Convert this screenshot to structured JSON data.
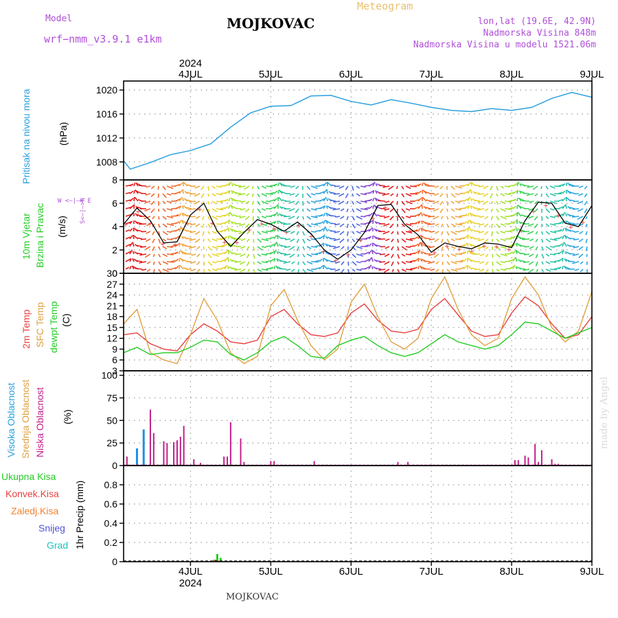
{
  "header": {
    "model_label": "Model",
    "model_name": "wrf−nmm_v3.9.1  e1km",
    "station": "MOJKOVAC",
    "meteogram": "Meteogram",
    "lonlat": "lon,lat (19.6E, 42.9N)",
    "elevation": "Nadmorska Visina 848m",
    "model_elevation": "Nadmorska Visina u modelu 1521.06m",
    "footer_station": "MOJKOVAC",
    "watermark": "made by Angel"
  },
  "colors": {
    "pressure": "#2aa0e0",
    "wind_speed": "#000000",
    "t2m": "#e84040",
    "sfc": "#e0a040",
    "dewpt": "#22cc22",
    "high_cloud": "#1e90e6",
    "mid_cloud": "#e0a040",
    "low_cloud": "#c0208a",
    "total_precip": "#22cc22",
    "conv_precip": "#e84040",
    "frozen_precip": "#f08030",
    "snow": "#5050e0",
    "graupel": "#20c0c0"
  },
  "time_axis": {
    "year_label": "2024",
    "days": [
      "4JUL",
      "5JUL",
      "6JUL",
      "7JUL",
      "8JUL",
      "9JUL"
    ],
    "start": "2024-07-03T16:00",
    "end": "2024-07-09T12:00"
  },
  "panels": {
    "pressure": {
      "ylabel": "Pritisak na nivou mora",
      "unit": "(hPa)"
    },
    "wind": {
      "ylabel_1": "10m Vjetar",
      "ylabel_2": "Brzina i Pravac",
      "unit": "(m/s)",
      "compass": "W <—|—> E",
      "compass_ns": "S<—|—>N"
    },
    "temp": {
      "ylabel_t2m": "2m Temp",
      "ylabel_sfc": "SFC Temp",
      "ylabel_dew": "dewpt Temp",
      "unit": "(C)"
    },
    "cloud": {
      "ylabel_high": "Visoka Oblacnost",
      "ylabel_mid": "Srednja Oblacnost",
      "ylabel_low": "Niska Oblacnost",
      "unit": "(%)"
    },
    "precip": {
      "ylabel": "1hr Precip (mm)",
      "legend": [
        "Ukupna Kisa",
        "Konvek.Kisa",
        "Zaledj.Kisa",
        "Snijeg",
        "Grad"
      ]
    }
  },
  "chart_data": [
    {
      "type": "line",
      "title": "Pritisak na nivou mora",
      "ylabel": "(hPa)",
      "ylim": [
        1005,
        1021.5
      ],
      "yticks": [
        1008,
        1012,
        1016,
        1020
      ],
      "series": [
        {
          "name": "Pritisak na nivou mora",
          "x": [
            "2024-07-03T16:00",
            "2024-07-03T18:00",
            "2024-07-04T00:00",
            "2024-07-04T06:00",
            "2024-07-04T12:00",
            "2024-07-04T18:00",
            "2024-07-05T00:00",
            "2024-07-05T06:00",
            "2024-07-05T12:00",
            "2024-07-05T18:00",
            "2024-07-06T00:00",
            "2024-07-06T06:00",
            "2024-07-06T12:00",
            "2024-07-06T18:00",
            "2024-07-07T00:00",
            "2024-07-07T06:00",
            "2024-07-07T12:00",
            "2024-07-07T18:00",
            "2024-07-08T00:00",
            "2024-07-08T06:00",
            "2024-07-08T12:00",
            "2024-07-08T18:00",
            "2024-07-09T00:00",
            "2024-07-09T06:00",
            "2024-07-09T12:00"
          ],
          "values": [
            1008.2,
            1006.8,
            1007.9,
            1009.2,
            1009.9,
            1011.0,
            1013.8,
            1016.2,
            1017.3,
            1017.4,
            1019.0,
            1019.1,
            1018.1,
            1017.5,
            1018.4,
            1017.8,
            1017.1,
            1016.6,
            1016.4,
            1016.9,
            1016.6,
            1017.1,
            1018.6,
            1019.6,
            1018.8
          ]
        }
      ]
    },
    {
      "type": "line",
      "title": "10m Vjetar Brzina i Pravac",
      "ylabel": "(m/s)",
      "ylim": [
        0,
        8
      ],
      "yticks": [
        0,
        2,
        4,
        6,
        8
      ],
      "series": [
        {
          "name": "Brzina",
          "x": [
            "2024-07-03T16:00",
            "2024-07-03T20:00",
            "2024-07-04T00:00",
            "2024-07-04T04:00",
            "2024-07-04T08:00",
            "2024-07-04T12:00",
            "2024-07-04T16:00",
            "2024-07-04T20:00",
            "2024-07-05T00:00",
            "2024-07-05T04:00",
            "2024-07-05T08:00",
            "2024-07-05T12:00",
            "2024-07-05T16:00",
            "2024-07-05T20:00",
            "2024-07-06T00:00",
            "2024-07-06T04:00",
            "2024-07-06T08:00",
            "2024-07-06T12:00",
            "2024-07-06T16:00",
            "2024-07-06T20:00",
            "2024-07-07T00:00",
            "2024-07-07T04:00",
            "2024-07-07T08:00",
            "2024-07-07T12:00",
            "2024-07-07T16:00",
            "2024-07-07T20:00",
            "2024-07-08T00:00",
            "2024-07-08T04:00",
            "2024-07-08T08:00",
            "2024-07-08T12:00",
            "2024-07-08T16:00",
            "2024-07-08T20:00",
            "2024-07-09T00:00",
            "2024-07-09T04:00",
            "2024-07-09T08:00",
            "2024-07-09T12:00"
          ],
          "values": [
            4.2,
            5.6,
            4.5,
            2.6,
            2.7,
            5.0,
            6.0,
            3.6,
            2.3,
            3.5,
            4.6,
            4.2,
            3.6,
            4.4,
            3.4,
            2.0,
            1.2,
            2.0,
            3.5,
            5.8,
            5.9,
            4.2,
            3.3,
            1.8,
            2.6,
            2.3,
            2.1,
            2.6,
            2.5,
            2.2,
            4.5,
            6.1,
            6.0,
            4.3,
            4.0,
            5.8
          ]
        }
      ]
    },
    {
      "type": "line",
      "title": "Temperatura",
      "ylabel": "(C)",
      "ylim": [
        3,
        30
      ],
      "yticks": [
        3,
        6,
        9,
        12,
        15,
        18,
        21,
        24,
        27,
        30
      ],
      "x": [
        "2024-07-03T16:00",
        "2024-07-03T20:00",
        "2024-07-04T00:00",
        "2024-07-04T04:00",
        "2024-07-04T08:00",
        "2024-07-04T12:00",
        "2024-07-04T16:00",
        "2024-07-04T20:00",
        "2024-07-05T00:00",
        "2024-07-05T04:00",
        "2024-07-05T08:00",
        "2024-07-05T12:00",
        "2024-07-05T16:00",
        "2024-07-05T20:00",
        "2024-07-06T00:00",
        "2024-07-06T04:00",
        "2024-07-06T08:00",
        "2024-07-06T12:00",
        "2024-07-06T16:00",
        "2024-07-06T20:00",
        "2024-07-07T00:00",
        "2024-07-07T04:00",
        "2024-07-07T08:00",
        "2024-07-07T12:00",
        "2024-07-07T16:00",
        "2024-07-07T20:00",
        "2024-07-08T00:00",
        "2024-07-08T04:00",
        "2024-07-08T08:00",
        "2024-07-08T12:00",
        "2024-07-08T16:00",
        "2024-07-08T20:00",
        "2024-07-09T00:00",
        "2024-07-09T04:00",
        "2024-07-09T08:00",
        "2024-07-09T12:00"
      ],
      "series": [
        {
          "name": "2m Temp",
          "values": [
            13,
            13.5,
            10.5,
            9,
            8.5,
            13,
            16,
            14,
            11,
            10.5,
            11.5,
            18,
            20,
            16,
            13,
            12.5,
            13.5,
            19,
            21.5,
            17,
            14,
            13.5,
            14.5,
            20,
            23,
            18.5,
            14,
            12.5,
            13,
            19,
            23.5,
            21,
            16,
            12,
            13,
            18
          ]
        },
        {
          "name": "SFC Temp",
          "values": [
            16,
            20,
            8,
            6,
            5,
            13,
            23,
            17,
            8,
            5,
            7,
            21,
            25.5,
            17,
            10,
            6,
            9,
            22,
            27,
            18,
            11,
            9,
            12,
            23,
            29,
            20,
            13,
            10,
            12,
            23,
            29,
            24,
            15,
            11,
            14,
            25
          ]
        },
        {
          "name": "dewpt Temp",
          "values": [
            8,
            9.5,
            7.5,
            8,
            8,
            9.5,
            11.5,
            11,
            7.5,
            6,
            8,
            11,
            12.5,
            10,
            7,
            6.5,
            10,
            11.5,
            12.5,
            10,
            8,
            7,
            8,
            10.5,
            13,
            11,
            10,
            9,
            10,
            13,
            16.5,
            16,
            14,
            12,
            13.5,
            15
          ]
        }
      ]
    },
    {
      "type": "bar",
      "title": "Oblacnost",
      "ylabel": "(%)",
      "ylim": [
        0,
        105
      ],
      "yticks": [
        0,
        25,
        50,
        75,
        100
      ],
      "series": [
        {
          "name": "Visoka Oblacnost",
          "x": [
            "2024-07-03T20:00",
            "2024-07-03T22:00"
          ],
          "values": [
            19,
            40
          ]
        },
        {
          "name": "Niska Oblacnost",
          "x": [
            "2024-07-03T17:00",
            "2024-07-04T00:00",
            "2024-07-04T01:00",
            "2024-07-04T04:00",
            "2024-07-04T05:00",
            "2024-07-04T07:00",
            "2024-07-04T08:00",
            "2024-07-04T09:00",
            "2024-07-04T10:00",
            "2024-07-04T13:00",
            "2024-07-04T15:00",
            "2024-07-04T22:00",
            "2024-07-04T23:00",
            "2024-07-05T00:00",
            "2024-07-05T03:00",
            "2024-07-05T04:00",
            "2024-07-05T12:00",
            "2024-07-05T13:00",
            "2024-07-06T01:00",
            "2024-07-07T02:00",
            "2024-07-07T05:00",
            "2024-07-08T13:00",
            "2024-07-08T14:00",
            "2024-07-08T16:00",
            "2024-07-08T17:00",
            "2024-07-08T19:00",
            "2024-07-08T20:00",
            "2024-07-08T21:00",
            "2024-07-09T00:00",
            "2024-07-09T01:00",
            "2024-07-09T02:00"
          ],
          "values": [
            10,
            62,
            36,
            27,
            25,
            26,
            28,
            32,
            44,
            7,
            3,
            10,
            10,
            48,
            30,
            4,
            5,
            5,
            5,
            4,
            4,
            6,
            6,
            11,
            9,
            24,
            4,
            17,
            7,
            2,
            2
          ]
        }
      ]
    },
    {
      "type": "bar",
      "title": "1hr Precip",
      "ylabel": "1hr Precip (mm)",
      "ylim": [
        0,
        1.0
      ],
      "yticks": [
        0,
        0.2,
        0.4,
        0.6,
        0.8
      ],
      "series": [
        {
          "name": "Ukupna Kisa",
          "x": [
            "2024-07-04T19:00",
            "2024-07-04T20:00",
            "2024-07-04T21:00"
          ],
          "values": [
            0.02,
            0.08,
            0.04
          ]
        },
        {
          "name": "Konvek.Kisa",
          "x": [
            "2024-07-04T20:00",
            "2024-07-04T21:00"
          ],
          "values": [
            0.02,
            0.01
          ]
        },
        {
          "name": "Zaledj.Kisa",
          "x": [],
          "values": []
        },
        {
          "name": "Snijeg",
          "x": [],
          "values": []
        },
        {
          "name": "Grad",
          "x": [],
          "values": []
        }
      ]
    }
  ]
}
